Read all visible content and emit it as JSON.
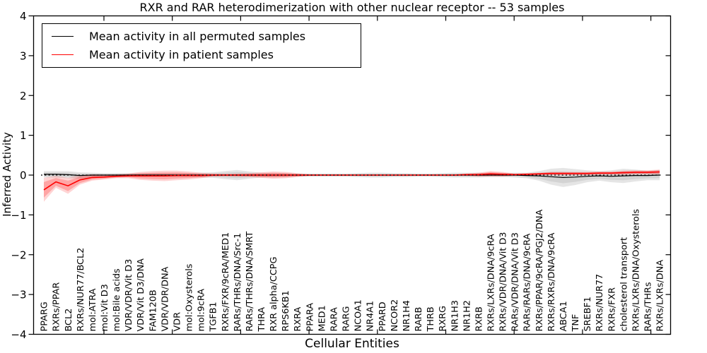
{
  "chart_data": {
    "type": "line",
    "title": "RXR and RAR heterodimerization with other nuclear receptor -- 53 samples",
    "xlabel": "Cellular Entities",
    "ylabel": "Inferred Activity",
    "ylim": [
      -4,
      4
    ],
    "yticks": [
      -4,
      -3,
      -2,
      -1,
      0,
      1,
      2,
      3,
      4
    ],
    "grid": false,
    "legend_position": "upper left",
    "zero_reference_line": true,
    "categories": [
      "PPARG",
      "RXRs/PPAR",
      "BCL2",
      "RXRs/NUR77/BCL2",
      "mol:ATRA",
      "mol:Vit D3",
      "mol:Bile acids",
      "VDR/VDR/Vit D3",
      "VDR/Vit D3/DNA",
      "FAM120B",
      "VDR/VDR/DNA",
      "VDR",
      "mol:Oxysterols",
      "mol:9cRA",
      "TGFB1",
      "RXRs/FXR/9cRA/MED1",
      "RARs/THRs/DNA/Src-1",
      "RARs/THRs/DNA/SMRT",
      "THRA",
      "RXR alpha/CCPG",
      "RPS6KB1",
      "RXRA",
      "PPARA",
      "MED1",
      "RARA",
      "RARG",
      "NCOA1",
      "NR4A1",
      "PPARD",
      "NCOR2",
      "NR1H4",
      "RARB",
      "THRB",
      "RXRG",
      "NR1H3",
      "NR1H2",
      "RXRB",
      "RXRs/LXRs/DNA/9cRA",
      "RXRs/VDR/DNA/Vit D3",
      "RARs/VDR/DNA/Vit D3",
      "RARs/RARs/DNA/9cRA",
      "RXRs/PPAR/9cRA/PGJ2/DNA",
      "RXRs/RXRs/DNA/9cRA",
      "ABCA1",
      "TNF",
      "SREBF1",
      "RXRs/NUR77",
      "RXRs/FXR",
      "cholesterol transport",
      "RXRs/LXRs/DNA/Oxysterols",
      "RARs/THRs",
      "RXRs/LXRs/DNA"
    ],
    "series": [
      {
        "name": "Mean activity in all permuted samples",
        "color": "#000000",
        "values": [
          0.02,
          0.02,
          0.01,
          -0.01,
          0,
          0,
          0,
          0,
          0,
          0,
          0,
          0,
          0,
          0,
          0,
          0,
          0,
          0,
          0,
          0,
          0,
          0,
          0,
          0,
          0,
          0,
          0,
          0,
          0,
          0,
          0,
          0,
          0,
          0,
          0,
          0,
          0,
          0,
          0,
          0,
          -0.01,
          -0.02,
          -0.04,
          -0.06,
          -0.05,
          -0.03,
          -0.02,
          -0.03,
          -0.02,
          -0.01,
          -0.01,
          0
        ],
        "band_halfwidth": [
          0.08,
          0.08,
          0.09,
          0.08,
          0.06,
          0.05,
          0.05,
          0.05,
          0.05,
          0.05,
          0.05,
          0.05,
          0.05,
          0.06,
          0.07,
          0.1,
          0.13,
          0.09,
          0.06,
          0.05,
          0.05,
          0.04,
          0.04,
          0.04,
          0.04,
          0.04,
          0.05,
          0.06,
          0.06,
          0.05,
          0.05,
          0.04,
          0.04,
          0.05,
          0.06,
          0.06,
          0.06,
          0.05,
          0.05,
          0.06,
          0.07,
          0.12,
          0.2,
          0.24,
          0.2,
          0.15,
          0.12,
          0.15,
          0.18,
          0.15,
          0.12,
          0.13
        ]
      },
      {
        "name": "Mean activity in patient samples",
        "color": "#ff0000",
        "values": [
          -0.37,
          -0.17,
          -0.27,
          -0.12,
          -0.06,
          -0.05,
          -0.03,
          -0.02,
          -0.02,
          -0.02,
          -0.02,
          -0.01,
          -0.01,
          -0.01,
          0,
          0,
          0,
          0,
          0,
          0,
          0,
          0,
          0,
          0,
          0,
          0,
          0,
          0,
          0,
          0,
          0,
          0,
          0,
          0,
          0,
          0.01,
          0.01,
          0.03,
          0.02,
          0.01,
          0.02,
          0.03,
          0.04,
          0.04,
          0.04,
          0.04,
          0.05,
          0.05,
          0.06,
          0.07,
          0.07,
          0.08
        ],
        "band_halfwidth": [
          0.3,
          0.15,
          0.2,
          0.12,
          0.08,
          0.06,
          0.05,
          0.06,
          0.1,
          0.12,
          0.13,
          0.12,
          0.1,
          0.07,
          0.04,
          0.03,
          0.04,
          0.05,
          0.07,
          0.09,
          0.08,
          0.05,
          0.02,
          0.015,
          0.015,
          0.015,
          0.015,
          0.015,
          0.015,
          0.015,
          0.015,
          0.015,
          0.015,
          0.015,
          0.02,
          0.03,
          0.05,
          0.07,
          0.06,
          0.03,
          0.03,
          0.03,
          0.04,
          0.04,
          0.04,
          0.04,
          0.04,
          0.04,
          0.05,
          0.05,
          0.05,
          0.06
        ]
      }
    ]
  }
}
